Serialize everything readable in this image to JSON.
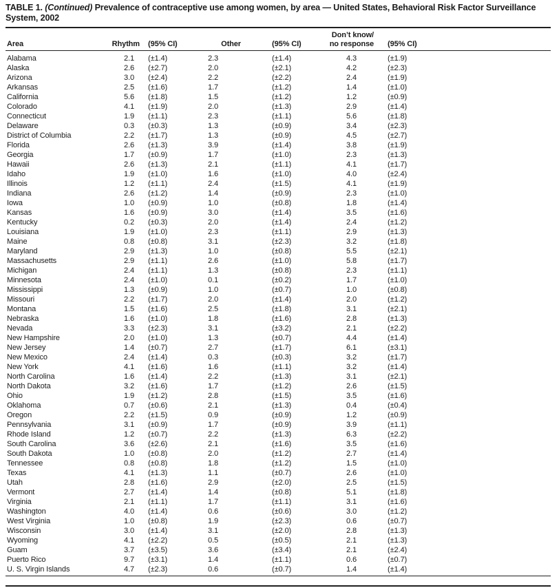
{
  "title": {
    "label": "TABLE 1.",
    "continued": "(Continued)",
    "rest": "Prevalence of contraceptive use among women, by area — United States, Behavioral Risk Factor Surveillance",
    "line2": "System, 2002"
  },
  "table": {
    "header": {
      "area": "Area",
      "rhythm": "Rhythm",
      "ci": "(95% CI)",
      "other": "Other",
      "dont_know_line1": "Don’t know/",
      "dont_know_line2": "no response"
    },
    "rows": [
      {
        "area": "Alabama",
        "rhythm": "2.1",
        "rhythm_ci": "(±1.4)",
        "other": "2.3",
        "other_ci": "(±1.4)",
        "dont_know": "4.3",
        "dont_know_ci": "(±1.9)"
      },
      {
        "area": "Alaska",
        "rhythm": "2.6",
        "rhythm_ci": "(±2.7)",
        "other": "2.0",
        "other_ci": "(±2.1)",
        "dont_know": "4.2",
        "dont_know_ci": "(±2.3)"
      },
      {
        "area": "Arizona",
        "rhythm": "3.0",
        "rhythm_ci": "(±2.4)",
        "other": "2.2",
        "other_ci": "(±2.2)",
        "dont_know": "2.4",
        "dont_know_ci": "(±1.9)"
      },
      {
        "area": "Arkansas",
        "rhythm": "2.5",
        "rhythm_ci": "(±1.6)",
        "other": "1.7",
        "other_ci": "(±1.2)",
        "dont_know": "1.4",
        "dont_know_ci": "(±1.0)"
      },
      {
        "area": "California",
        "rhythm": "5.6",
        "rhythm_ci": "(±1.8)",
        "other": "1.5",
        "other_ci": "(±1.2)",
        "dont_know": "1.2",
        "dont_know_ci": "(±0.9)"
      },
      {
        "area": "Colorado",
        "rhythm": "4.1",
        "rhythm_ci": "(±1.9)",
        "other": "2.0",
        "other_ci": "(±1.3)",
        "dont_know": "2.9",
        "dont_know_ci": "(±1.4)"
      },
      {
        "area": "Connecticut",
        "rhythm": "1.9",
        "rhythm_ci": "(±1.1)",
        "other": "2.3",
        "other_ci": "(±1.1)",
        "dont_know": "5.6",
        "dont_know_ci": "(±1.8)"
      },
      {
        "area": "Delaware",
        "rhythm": "0.3",
        "rhythm_ci": "(±0.3)",
        "other": "1.3",
        "other_ci": "(±0.9)",
        "dont_know": "3.4",
        "dont_know_ci": "(±2.3)"
      },
      {
        "area": "District of Columbia",
        "rhythm": "2.2",
        "rhythm_ci": "(±1.7)",
        "other": "1.3",
        "other_ci": "(±0.9)",
        "dont_know": "4.5",
        "dont_know_ci": "(±2.7)"
      },
      {
        "area": "Florida",
        "rhythm": "2.6",
        "rhythm_ci": "(±1.3)",
        "other": "3.9",
        "other_ci": "(±1.4)",
        "dont_know": "3.8",
        "dont_know_ci": "(±1.9)"
      },
      {
        "area": "Georgia",
        "rhythm": "1.7",
        "rhythm_ci": "(±0.9)",
        "other": "1.7",
        "other_ci": "(±1.0)",
        "dont_know": "2.3",
        "dont_know_ci": "(±1.3)"
      },
      {
        "area": "Hawaii",
        "rhythm": "2.6",
        "rhythm_ci": "(±1.3)",
        "other": "2.1",
        "other_ci": "(±1.1)",
        "dont_know": "4.1",
        "dont_know_ci": "(±1.7)"
      },
      {
        "area": "Idaho",
        "rhythm": "1.9",
        "rhythm_ci": "(±1.0)",
        "other": "1.6",
        "other_ci": "(±1.0)",
        "dont_know": "4.0",
        "dont_know_ci": "(±2.4)"
      },
      {
        "area": "Illinois",
        "rhythm": "1.2",
        "rhythm_ci": "(±1.1)",
        "other": "2.4",
        "other_ci": "(±1.5)",
        "dont_know": "4.1",
        "dont_know_ci": "(±1.9)"
      },
      {
        "area": "Indiana",
        "rhythm": "2.6",
        "rhythm_ci": "(±1.2)",
        "other": "1.4",
        "other_ci": "(±0.9)",
        "dont_know": "2.3",
        "dont_know_ci": "(±1.0)"
      },
      {
        "area": "Iowa",
        "rhythm": "1.0",
        "rhythm_ci": "(±0.9)",
        "other": "1.0",
        "other_ci": "(±0.8)",
        "dont_know": "1.8",
        "dont_know_ci": "(±1.4)"
      },
      {
        "area": "Kansas",
        "rhythm": "1.6",
        "rhythm_ci": "(±0.9)",
        "other": "3.0",
        "other_ci": "(±1.4)",
        "dont_know": "3.5",
        "dont_know_ci": "(±1.6)"
      },
      {
        "area": "Kentucky",
        "rhythm": "0.2",
        "rhythm_ci": "(±0.3)",
        "other": "2.0",
        "other_ci": "(±1.4)",
        "dont_know": "2.4",
        "dont_know_ci": "(±1.2)"
      },
      {
        "area": "Louisiana",
        "rhythm": "1.9",
        "rhythm_ci": "(±1.0)",
        "other": "2.3",
        "other_ci": "(±1.1)",
        "dont_know": "2.9",
        "dont_know_ci": "(±1.3)"
      },
      {
        "area": "Maine",
        "rhythm": "0.8",
        "rhythm_ci": "(±0.8)",
        "other": "3.1",
        "other_ci": "(±2.3)",
        "dont_know": "3.2",
        "dont_know_ci": "(±1.8)"
      },
      {
        "area": "Maryland",
        "rhythm": "2.9",
        "rhythm_ci": "(±1.3)",
        "other": "1.0",
        "other_ci": "(±0.8)",
        "dont_know": "5.5",
        "dont_know_ci": "(±2.1)"
      },
      {
        "area": "Massachusetts",
        "rhythm": "2.9",
        "rhythm_ci": "(±1.1)",
        "other": "2.6",
        "other_ci": "(±1.0)",
        "dont_know": "5.8",
        "dont_know_ci": "(±1.7)"
      },
      {
        "area": "Michigan",
        "rhythm": "2.4",
        "rhythm_ci": "(±1.1)",
        "other": "1.3",
        "other_ci": "(±0.8)",
        "dont_know": "2.3",
        "dont_know_ci": "(±1.1)"
      },
      {
        "area": "Minnesota",
        "rhythm": "2.4",
        "rhythm_ci": "(±1.0)",
        "other": "0.1",
        "other_ci": "(±0.2)",
        "dont_know": "1.7",
        "dont_know_ci": "(±1.0)"
      },
      {
        "area": "Mississippi",
        "rhythm": "1.3",
        "rhythm_ci": "(±0.9)",
        "other": "1.0",
        "other_ci": "(±0.7)",
        "dont_know": "1.0",
        "dont_know_ci": "(±0.8)"
      },
      {
        "area": "Missouri",
        "rhythm": "2.2",
        "rhythm_ci": "(±1.7)",
        "other": "2.0",
        "other_ci": "(±1.4)",
        "dont_know": "2.0",
        "dont_know_ci": "(±1.2)"
      },
      {
        "area": "Montana",
        "rhythm": "1.5",
        "rhythm_ci": "(±1.6)",
        "other": "2.5",
        "other_ci": "(±1.8)",
        "dont_know": "3.1",
        "dont_know_ci": "(±2.1)"
      },
      {
        "area": "Nebraska",
        "rhythm": "1.6",
        "rhythm_ci": "(±1.0)",
        "other": "1.8",
        "other_ci": "(±1.6)",
        "dont_know": "2.8",
        "dont_know_ci": "(±1.3)"
      },
      {
        "area": "Nevada",
        "rhythm": "3.3",
        "rhythm_ci": "(±2.3)",
        "other": "3.1",
        "other_ci": "(±3.2)",
        "dont_know": "2.1",
        "dont_know_ci": "(±2.2)"
      },
      {
        "area": "New Hampshire",
        "rhythm": "2.0",
        "rhythm_ci": "(±1.0)",
        "other": "1.3",
        "other_ci": "(±0.7)",
        "dont_know": "4.4",
        "dont_know_ci": "(±1.4)"
      },
      {
        "area": "New Jersey",
        "rhythm": "1.4",
        "rhythm_ci": "(±0.7)",
        "other": "2.7",
        "other_ci": "(±1.7)",
        "dont_know": "6.1",
        "dont_know_ci": "(±3.1)"
      },
      {
        "area": "New Mexico",
        "rhythm": "2.4",
        "rhythm_ci": "(±1.4)",
        "other": "0.3",
        "other_ci": "(±0.3)",
        "dont_know": "3.2",
        "dont_know_ci": "(±1.7)"
      },
      {
        "area": "New York",
        "rhythm": "4.1",
        "rhythm_ci": "(±1.6)",
        "other": "1.6",
        "other_ci": "(±1.1)",
        "dont_know": "3.2",
        "dont_know_ci": "(±1.4)"
      },
      {
        "area": "North Carolina",
        "rhythm": "1.6",
        "rhythm_ci": "(±1.4)",
        "other": "2.2",
        "other_ci": "(±1.3)",
        "dont_know": "3.1",
        "dont_know_ci": "(±2.1)"
      },
      {
        "area": "North Dakota",
        "rhythm": "3.2",
        "rhythm_ci": "(±1.6)",
        "other": "1.7",
        "other_ci": "(±1.2)",
        "dont_know": "2.6",
        "dont_know_ci": "(±1.5)"
      },
      {
        "area": "Ohio",
        "rhythm": "1.9",
        "rhythm_ci": "(±1.2)",
        "other": "2.8",
        "other_ci": "(±1.5)",
        "dont_know": "3.5",
        "dont_know_ci": "(±1.6)"
      },
      {
        "area": "Oklahoma",
        "rhythm": "0.7",
        "rhythm_ci": "(±0.6)",
        "other": "2.1",
        "other_ci": "(±1.3)",
        "dont_know": "0.4",
        "dont_know_ci": "(±0.4)"
      },
      {
        "area": "Oregon",
        "rhythm": "2.2",
        "rhythm_ci": "(±1.5)",
        "other": "0.9",
        "other_ci": "(±0.9)",
        "dont_know": "1.2",
        "dont_know_ci": "(±0.9)"
      },
      {
        "area": "Pennsylvania",
        "rhythm": "3.1",
        "rhythm_ci": "(±0.9)",
        "other": "1.7",
        "other_ci": "(±0.9)",
        "dont_know": "3.9",
        "dont_know_ci": "(±1.1)"
      },
      {
        "area": "Rhode Island",
        "rhythm": "1.2",
        "rhythm_ci": "(±0.7)",
        "other": "2.2",
        "other_ci": "(±1.3)",
        "dont_know": "6.3",
        "dont_know_ci": "(±2.2)"
      },
      {
        "area": "South Carolina",
        "rhythm": "3.6",
        "rhythm_ci": "(±2.6)",
        "other": "2.1",
        "other_ci": "(±1.6)",
        "dont_know": "3.5",
        "dont_know_ci": "(±1.6)"
      },
      {
        "area": "South Dakota",
        "rhythm": "1.0",
        "rhythm_ci": "(±0.8)",
        "other": "2.0",
        "other_ci": "(±1.2)",
        "dont_know": "2.7",
        "dont_know_ci": "(±1.4)"
      },
      {
        "area": "Tennessee",
        "rhythm": "0.8",
        "rhythm_ci": "(±0.8)",
        "other": "1.8",
        "other_ci": "(±1.2)",
        "dont_know": "1.5",
        "dont_know_ci": "(±1.0)"
      },
      {
        "area": "Texas",
        "rhythm": "4.1",
        "rhythm_ci": "(±1.3)",
        "other": "1.1",
        "other_ci": "(±0.7)",
        "dont_know": "2.6",
        "dont_know_ci": "(±1.0)"
      },
      {
        "area": "Utah",
        "rhythm": "2.8",
        "rhythm_ci": "(±1.6)",
        "other": "2.9",
        "other_ci": "(±2.0)",
        "dont_know": "2.5",
        "dont_know_ci": "(±1.5)"
      },
      {
        "area": "Vermont",
        "rhythm": "2.7",
        "rhythm_ci": "(±1.4)",
        "other": "1.4",
        "other_ci": "(±0.8)",
        "dont_know": "5.1",
        "dont_know_ci": "(±1.8)"
      },
      {
        "area": "Virginia",
        "rhythm": "2.1",
        "rhythm_ci": "(±1.1)",
        "other": "1.7",
        "other_ci": "(±1.1)",
        "dont_know": "3.1",
        "dont_know_ci": "(±1.6)"
      },
      {
        "area": "Washington",
        "rhythm": "4.0",
        "rhythm_ci": "(±1.4)",
        "other": "0.6",
        "other_ci": "(±0.6)",
        "dont_know": "3.0",
        "dont_know_ci": "(±1.2)"
      },
      {
        "area": "West Virginia",
        "rhythm": "1.0",
        "rhythm_ci": "(±0.8)",
        "other": "1.9",
        "other_ci": "(±2.3)",
        "dont_know": "0.6",
        "dont_know_ci": "(±0.7)"
      },
      {
        "area": "Wisconsin",
        "rhythm": "3.0",
        "rhythm_ci": "(±1.4)",
        "other": "3.1",
        "other_ci": "(±2.0)",
        "dont_know": "2.8",
        "dont_know_ci": "(±1.3)"
      },
      {
        "area": "Wyoming",
        "rhythm": "4.1",
        "rhythm_ci": "(±2.2)",
        "other": "0.5",
        "other_ci": "(±0.5)",
        "dont_know": "2.1",
        "dont_know_ci": "(±1.3)"
      },
      {
        "area": "Guam",
        "rhythm": "3.7",
        "rhythm_ci": "(±3.5)",
        "other": "3.6",
        "other_ci": "(±3.4)",
        "dont_know": "2.1",
        "dont_know_ci": "(±2.4)"
      },
      {
        "area": "Puerto Rico",
        "rhythm": "9.7",
        "rhythm_ci": "(±3.1)",
        "other": "1.4",
        "other_ci": "(±1.1)",
        "dont_know": "0.6",
        "dont_know_ci": "(±0.7)"
      },
      {
        "area": "U. S. Virgin Islands",
        "rhythm": "4.7",
        "rhythm_ci": "(±2.3)",
        "other": "0.6",
        "other_ci": "(±0.7)",
        "dont_know": "1.4",
        "dont_know_ci": "(±1.4)"
      }
    ]
  }
}
